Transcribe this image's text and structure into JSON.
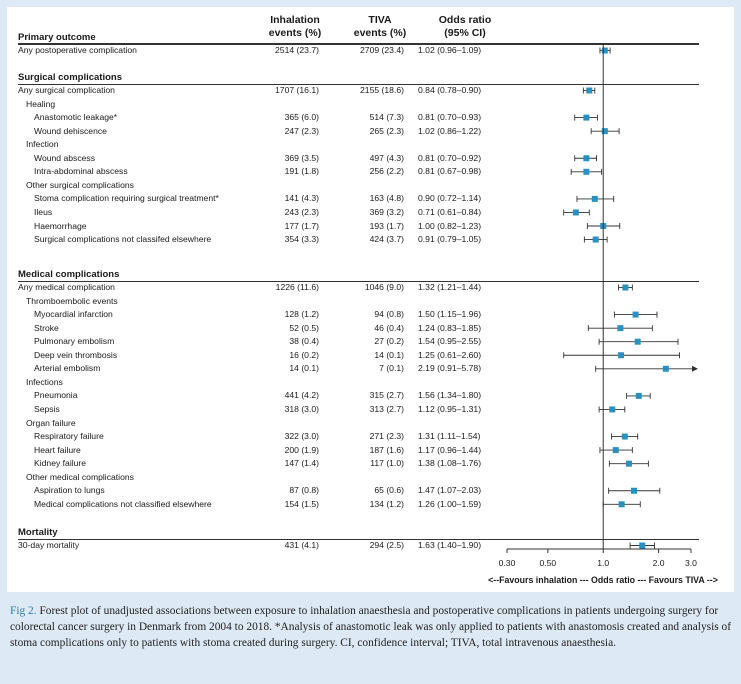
{
  "header": {
    "col1": [
      "Inhalation",
      "events (%)"
    ],
    "col2": [
      "TIVA",
      "events (%)"
    ],
    "col3": [
      "Odds ratio",
      "(95% CI)"
    ]
  },
  "sections": [
    {
      "title": "Primary outcome",
      "rows": [
        {
          "label": "Any postoperative complication",
          "indent": 0,
          "inh": "2514 (23.7)",
          "tiva": "2709 (23.4)",
          "or_text": "1.02 (0.96–1.09)",
          "or": 1.02,
          "lo": 0.96,
          "hi": 1.09
        }
      ]
    },
    {
      "title": "Surgical complications",
      "rows": [
        {
          "label": "Any surgical complication",
          "indent": 0,
          "inh": "1707 (16.1)",
          "tiva": "2155 (18.6)",
          "or_text": "0.84 (0.78–0.90)",
          "or": 0.84,
          "lo": 0.78,
          "hi": 0.9
        },
        {
          "label": "Healing",
          "indent": 1
        },
        {
          "label": "Anastomotic leakage*",
          "indent": 2,
          "inh": "365 (6.0)",
          "tiva": "514 (7.3)",
          "or_text": "0.81 (0.70–0.93)",
          "or": 0.81,
          "lo": 0.7,
          "hi": 0.93
        },
        {
          "label": "Wound dehiscence",
          "indent": 2,
          "inh": "247 (2.3)",
          "tiva": "265 (2.3)",
          "or_text": "1.02 (0.86–1.22)",
          "or": 1.02,
          "lo": 0.86,
          "hi": 1.22
        },
        {
          "label": "Infection",
          "indent": 1
        },
        {
          "label": "Wound abscess",
          "indent": 2,
          "inh": "369 (3.5)",
          "tiva": "497 (4.3)",
          "or_text": "0.81 (0.70–0.92)",
          "or": 0.81,
          "lo": 0.7,
          "hi": 0.92
        },
        {
          "label": "Intra-abdominal abscess",
          "indent": 2,
          "inh": "191 (1.8)",
          "tiva": "256 (2.2)",
          "or_text": "0.81 (0.67–0.98)",
          "or": 0.81,
          "lo": 0.67,
          "hi": 0.98
        },
        {
          "label": "Other surgical complications",
          "indent": 1
        },
        {
          "label": "Stoma complication requiring surgical treatment*",
          "indent": 2,
          "inh": "141 (4.3)",
          "tiva": "163 (4.8)",
          "or_text": "0.90 (0.72–1.14)",
          "or": 0.9,
          "lo": 0.72,
          "hi": 1.14
        },
        {
          "label": "Ileus",
          "indent": 2,
          "inh": "243 (2.3)",
          "tiva": "369 (3.2)",
          "or_text": "0.71 (0.61–0.84)",
          "or": 0.71,
          "lo": 0.61,
          "hi": 0.84
        },
        {
          "label": "Haemorrhage",
          "indent": 2,
          "inh": "177 (1.7)",
          "tiva": "193 (1.7)",
          "or_text": "1.00 (0.82–1.23)",
          "or": 1.0,
          "lo": 0.82,
          "hi": 1.23
        },
        {
          "label": "Surgical complications not classifed elsewhere",
          "indent": 2,
          "inh": "354 (3.3)",
          "tiva": "424 (3.7)",
          "or_text": "0.91 (0.79–1.05)",
          "or": 0.91,
          "lo": 0.79,
          "hi": 1.05
        }
      ]
    },
    {
      "title": "Medical complications",
      "rows": [
        {
          "label": "Any medical complication",
          "indent": 0,
          "inh": "1226 (11.6)",
          "tiva": "1046 (9.0)",
          "or_text": "1.32 (1.21–1.44)",
          "or": 1.32,
          "lo": 1.21,
          "hi": 1.44
        },
        {
          "label": "Thromboembolic events",
          "indent": 1
        },
        {
          "label": "Myocardial infarction",
          "indent": 2,
          "inh": "128 (1.2)",
          "tiva": "94 (0.8)",
          "or_text": "1.50 (1.15–1.96)",
          "or": 1.5,
          "lo": 1.15,
          "hi": 1.96
        },
        {
          "label": "Stroke",
          "indent": 2,
          "inh": "52 (0.5)",
          "tiva": "46 (0.4)",
          "or_text": "1.24 (0.83–1.85)",
          "or": 1.24,
          "lo": 0.83,
          "hi": 1.85
        },
        {
          "label": "Pulmonary embolism",
          "indent": 2,
          "inh": "38 (0.4)",
          "tiva": "27 (0.2)",
          "or_text": "1.54 (0.95–2.55)",
          "or": 1.54,
          "lo": 0.95,
          "hi": 2.55
        },
        {
          "label": "Deep vein thrombosis",
          "indent": 2,
          "inh": "16 (0.2)",
          "tiva": "14 (0.1)",
          "or_text": "1.25 (0.61–2.60)",
          "or": 1.25,
          "lo": 0.61,
          "hi": 2.6
        },
        {
          "label": "Arterial embolism",
          "indent": 2,
          "inh": "14 (0.1)",
          "tiva": "7 (0.1)",
          "or_text": "2.19 (0.91–5.78)",
          "or": 2.19,
          "lo": 0.91,
          "hi": 5.78
        },
        {
          "label": "Infections",
          "indent": 1
        },
        {
          "label": "Pneumonia",
          "indent": 2,
          "inh": "441 (4.2)",
          "tiva": "315 (2.7)",
          "or_text": "1.56 (1.34–1.80)",
          "or": 1.56,
          "lo": 1.34,
          "hi": 1.8
        },
        {
          "label": "Sepsis",
          "indent": 2,
          "inh": "318 (3.0)",
          "tiva": "313 (2.7)",
          "or_text": "1.12 (0.95–1.31)",
          "or": 1.12,
          "lo": 0.95,
          "hi": 1.31
        },
        {
          "label": "Organ failure",
          "indent": 1
        },
        {
          "label": "Respiratory failure",
          "indent": 2,
          "inh": "322 (3.0)",
          "tiva": "271 (2.3)",
          "or_text": "1.31 (1.11–1.54)",
          "or": 1.31,
          "lo": 1.11,
          "hi": 1.54
        },
        {
          "label": "Heart failure",
          "indent": 2,
          "inh": "200 (1.9)",
          "tiva": "187 (1.6)",
          "or_text": "1.17 (0.96–1.44)",
          "or": 1.17,
          "lo": 0.96,
          "hi": 1.44
        },
        {
          "label": "Kidney failure",
          "indent": 2,
          "inh": "147 (1.4)",
          "tiva": "117 (1.0)",
          "or_text": "1.38 (1.08–1.76)",
          "or": 1.38,
          "lo": 1.08,
          "hi": 1.76
        },
        {
          "label": "Other medical complications",
          "indent": 1
        },
        {
          "label": "Aspiration to lungs",
          "indent": 2,
          "inh": "87 (0.8)",
          "tiva": "65 (0.6)",
          "or_text": "1.47 (1.07–2.03)",
          "or": 1.47,
          "lo": 1.07,
          "hi": 2.03
        },
        {
          "label": "Medical complications not classified elsewhere",
          "indent": 2,
          "inh": "154 (1.5)",
          "tiva": "134 (1.2)",
          "or_text": "1.26 (1.00–1.59)",
          "or": 1.26,
          "lo": 1.0,
          "hi": 1.59
        }
      ]
    },
    {
      "title": "Mortality",
      "rows": [
        {
          "label": "30-day mortality",
          "indent": 0,
          "inh": "431 (4.1)",
          "tiva": "294 (2.5)",
          "or_text": "1.63 (1.40–1.90)",
          "or": 1.63,
          "lo": 1.4,
          "hi": 1.9
        }
      ]
    }
  ],
  "chart_data": {
    "type": "forest",
    "scale": "log",
    "xlim": [
      0.3,
      3.0
    ],
    "reference_line": 1.0,
    "xticks": [
      0.3,
      0.5,
      1.0,
      2.0,
      3.0
    ],
    "xtick_labels": [
      "0.30",
      "0.50",
      "1.0",
      "2.0",
      "3.0"
    ],
    "xlabel": "<--Favours inhalation --- Odds ratio --- Favours TIVA -->",
    "marker_color": "#2a90c0"
  },
  "caption": {
    "label": "Fig 2.",
    "text": " Forest plot of unadjusted associations between exposure to inhalation anaesthesia and postoperative complications in patients undergoing surgery for colorectal cancer surgery in Denmark from 2004 to 2018. *Analysis of anastomotic leak was only applied to patients with anastomosis created and analysis of stoma complications only to patients with stoma created during surgery. CI, confidence interval; TIVA, total intravenous anaesthesia."
  }
}
